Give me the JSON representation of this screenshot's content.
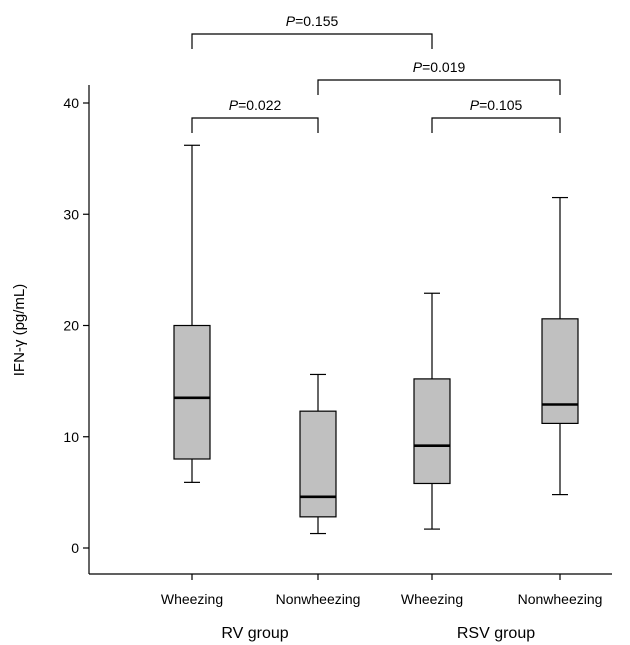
{
  "chart_data": {
    "type": "box",
    "ylabel": "IFN-γ (pg/mL)",
    "ylim": [
      -2,
      42
    ],
    "yticks": [
      0,
      10,
      20,
      30,
      40
    ],
    "categories": [
      "Wheezing",
      "Nonwheezing",
      "Wheezing",
      "Nonwheezing"
    ],
    "groups": [
      {
        "label": "RV group",
        "categories": [
          0,
          1
        ]
      },
      {
        "label": "RSV group",
        "categories": [
          2,
          3
        ]
      }
    ],
    "boxes": [
      {
        "category": "Wheezing",
        "group": "RV group",
        "whisker_low": 5.9,
        "q1": 8.0,
        "median": 13.5,
        "q3": 20.0,
        "whisker_high": 36.2
      },
      {
        "category": "Nonwheezing",
        "group": "RV group",
        "whisker_low": 1.3,
        "q1": 2.8,
        "median": 4.6,
        "q3": 12.3,
        "whisker_high": 15.6
      },
      {
        "category": "Wheezing",
        "group": "RSV group",
        "whisker_low": 1.7,
        "q1": 5.8,
        "median": 9.2,
        "q3": 15.2,
        "whisker_high": 22.9
      },
      {
        "category": "Nonwheezing",
        "group": "RSV group",
        "whisker_low": 4.8,
        "q1": 11.2,
        "median": 12.9,
        "q3": 20.6,
        "whisker_high": 31.5
      }
    ],
    "comparisons": [
      {
        "from": 0,
        "to": 2,
        "p_prefix": "P",
        "p_value": "=0.155",
        "level": 3
      },
      {
        "from": 1,
        "to": 3,
        "p_prefix": "P",
        "p_value": "=0.019",
        "level": 2
      },
      {
        "from": 0,
        "to": 1,
        "p_prefix": "P",
        "p_value": "=0.022",
        "level": 1
      },
      {
        "from": 2,
        "to": 3,
        "p_prefix": "P",
        "p_value": "=0.105",
        "level": 1
      }
    ],
    "colors": {
      "box_fill": "#c0c0c0",
      "stroke": "#000000"
    },
    "grid": false,
    "legend": "none"
  }
}
